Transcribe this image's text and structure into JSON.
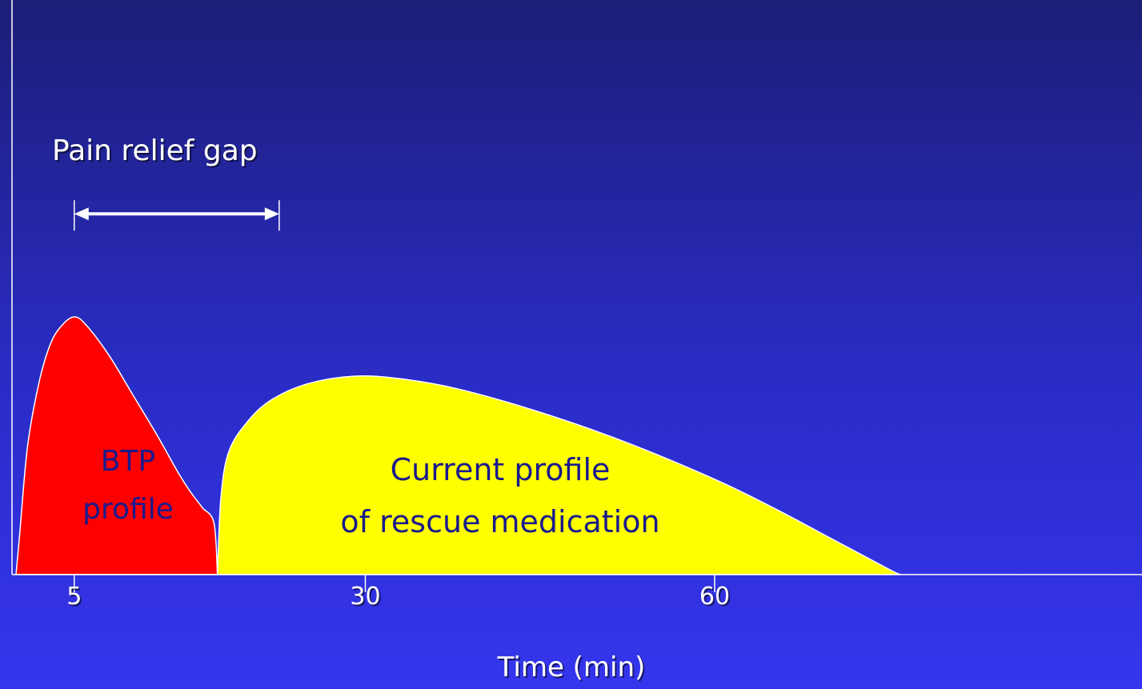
{
  "chart_data": {
    "type": "area",
    "title": "",
    "xlabel": "Time (min)",
    "ylabel": "",
    "x_ticks": [
      5,
      30,
      60
    ],
    "xlim": [
      0,
      90
    ],
    "ylim": [
      0,
      1
    ],
    "grid": false,
    "series": [
      {
        "name": "BTP profile",
        "color": "#ff0000",
        "label_lines": [
          "BTP",
          "profile"
        ],
        "points": [
          [
            0,
            0
          ],
          [
            0.3,
            0.15
          ],
          [
            1,
            0.5
          ],
          [
            2,
            0.75
          ],
          [
            3,
            0.9
          ],
          [
            4,
            0.97
          ],
          [
            5,
            1.0
          ],
          [
            6,
            0.97
          ],
          [
            8,
            0.85
          ],
          [
            10,
            0.7
          ],
          [
            12,
            0.55
          ],
          [
            14,
            0.39
          ],
          [
            15,
            0.32
          ],
          [
            16,
            0.26
          ],
          [
            17,
            0.2
          ],
          [
            17.3,
            0
          ]
        ]
      },
      {
        "name": "Current profile of rescue medication",
        "color": "#ffff00",
        "label_lines": [
          "Current profile",
          "of rescue medication"
        ],
        "points": [
          [
            17.3,
            0
          ],
          [
            17.6,
            0.3
          ],
          [
            18.3,
            0.48
          ],
          [
            20,
            0.6
          ],
          [
            22,
            0.68
          ],
          [
            25,
            0.74
          ],
          [
            29,
            0.77
          ],
          [
            33,
            0.76
          ],
          [
            38,
            0.72
          ],
          [
            45,
            0.63
          ],
          [
            52,
            0.52
          ],
          [
            60,
            0.37
          ],
          [
            65,
            0.26
          ],
          [
            70,
            0.14
          ],
          [
            75,
            0.02
          ],
          [
            76,
            0
          ]
        ]
      }
    ],
    "annotation": {
      "text": "Pain relief gap",
      "x_start": 5,
      "x_end": 22.6,
      "y": 1.4
    }
  },
  "colors": {
    "axis": "#ffffff",
    "label_text": "#1a1a8c",
    "outline": "#ffffff"
  }
}
